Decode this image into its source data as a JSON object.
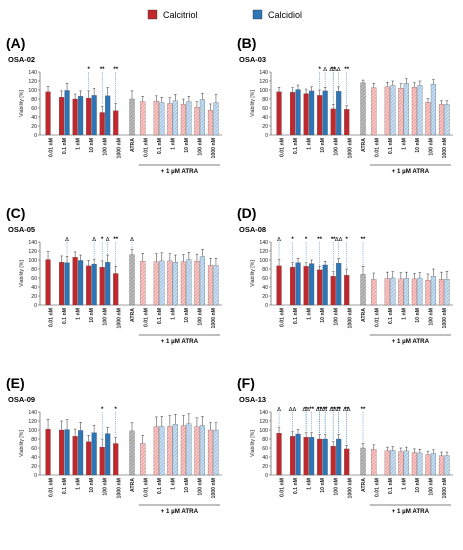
{
  "legend": [
    {
      "label": "Calcitriol",
      "color": "#c0282d"
    },
    {
      "label": "Calcidiol",
      "color": "#2e75b6"
    }
  ],
  "colors": {
    "calcitriol_dark": "#c0282d",
    "calcitriol_light": "#f3a8a6",
    "calcidiol_dark": "#2e75b6",
    "calcidiol_light": "#a9cbe8",
    "atra": "#8c8c8c",
    "error": "#333333",
    "marker": "#2e75b6"
  },
  "chart_data": [
    {
      "type": "bar",
      "panel_letter": "(A)",
      "cell_line": "OSA-02",
      "ylabel": "Viability [%]",
      "ylim": [
        0,
        140
      ],
      "yticks": [
        0,
        20,
        40,
        60,
        80,
        100,
        120,
        140
      ],
      "categories": [
        "0.01 nM",
        "0.1 nM",
        "1 nM",
        "10 nM",
        "100 nM",
        "1000 nM",
        "ATRA",
        "0.01 nM",
        "0.1 nM",
        "1 nM",
        "10 nM",
        "100 nM",
        "1000 nM"
      ],
      "group_label": "+ 1 µM ATRA",
      "series": [
        {
          "name": "Calcitriol",
          "values": [
            96,
            84,
            80,
            82,
            50,
            54,
            null,
            74,
            75,
            70,
            68,
            62,
            55
          ],
          "errors": [
            12,
            14,
            11,
            16,
            14,
            16,
            null,
            12,
            12,
            13,
            12,
            12,
            14
          ]
        },
        {
          "name": "Calcidiol",
          "values": [
            null,
            99,
            86,
            88,
            87,
            null,
            null,
            null,
            72,
            76,
            74,
            79,
            72
          ],
          "errors": [
            null,
            16,
            12,
            15,
            18,
            null,
            null,
            null,
            12,
            14,
            12,
            14,
            18
          ]
        },
        {
          "name": "ATRA",
          "values": [
            null,
            null,
            null,
            null,
            null,
            null,
            80,
            null,
            null,
            null,
            null,
            null,
            null
          ],
          "errors": [
            null,
            null,
            null,
            null,
            null,
            null,
            18,
            null,
            null,
            null,
            null,
            null,
            null
          ]
        }
      ],
      "annotations": [
        {
          "category": "10 nM",
          "series": "Calcitriol",
          "label": "*"
        },
        {
          "category": "100 nM",
          "series": "Calcitriol",
          "label": "**"
        },
        {
          "category": "1000 nM",
          "series": "Calcitriol",
          "label": "**"
        }
      ],
      "atra_markers": [
        {
          "category": "1000 nM",
          "series": "Calcidiol",
          "label": "Δ"
        }
      ]
    },
    {
      "type": "bar",
      "panel_letter": "(B)",
      "cell_line": "OSA-03",
      "ylabel": "Viability [%]",
      "ylim": [
        0,
        140
      ],
      "yticks": [
        0,
        20,
        40,
        60,
        80,
        100,
        120,
        140
      ],
      "categories": [
        "0.01 nM",
        "0.1 nM",
        "1 nM",
        "10 nM",
        "100 nM",
        "1000 nM",
        "ATRA",
        "0.01 nM",
        "0.1 nM",
        "1 nM",
        "10 nM",
        "100 nM",
        "1000 nM"
      ],
      "group_label": "+ 1 µM ATRA",
      "series": [
        {
          "name": "Calcitriol",
          "values": [
            96,
            95,
            92,
            88,
            58,
            57,
            null,
            105,
            107,
            104,
            106,
            73,
            68
          ],
          "errors": [
            10,
            10,
            10,
            12,
            10,
            8,
            null,
            10,
            10,
            10,
            10,
            8,
            8
          ]
        },
        {
          "name": "Calcidiol",
          "values": [
            null,
            101,
            98,
            98,
            97,
            null,
            null,
            null,
            110,
            115,
            110,
            113,
            68
          ],
          "errors": [
            null,
            10,
            9,
            8,
            10,
            null,
            null,
            null,
            10,
            10,
            10,
            10,
            8
          ]
        },
        {
          "name": "ATRA",
          "values": [
            null,
            null,
            null,
            null,
            null,
            null,
            116,
            null,
            null,
            null,
            null,
            null,
            null
          ],
          "errors": [
            null,
            null,
            null,
            null,
            null,
            null,
            6,
            null,
            null,
            null,
            null,
            null,
            null
          ]
        }
      ],
      "annotations": [
        {
          "category": "10 nM",
          "series": "Calcitriol",
          "label": "*"
        },
        {
          "category": "100 nM",
          "series": "Calcitriol",
          "label": "**"
        },
        {
          "category": "1000 nM",
          "series": "Calcitriol",
          "label": "**"
        }
      ],
      "atra_markers": [
        {
          "category": "10 nM",
          "series": "Calcidiol",
          "label": "Δ"
        },
        {
          "category": "100 nM",
          "series": "Calcitriol",
          "label": "ΔΔ"
        },
        {
          "category": "100 nM",
          "series": "Calcidiol",
          "label": "Δ"
        },
        {
          "category": "1000 nM",
          "series": "Calcidiol",
          "label": "ΔΔ"
        }
      ]
    },
    {
      "type": "bar",
      "panel_letter": "(C)",
      "cell_line": "OSA-05",
      "ylabel": "Viability [%]",
      "ylim": [
        0,
        140
      ],
      "yticks": [
        0,
        20,
        40,
        60,
        80,
        100,
        120,
        140
      ],
      "categories": [
        "0.01 nM",
        "0.1 nM",
        "1 nM",
        "10 nM",
        "100 nM",
        "1000 nM",
        "ATRA",
        "0.01 nM",
        "0.1 nM",
        "1 nM",
        "10 nM",
        "100 nM",
        "1000 nM"
      ],
      "group_label": "+ 1 µM ATRA",
      "series": [
        {
          "name": "Calcitriol",
          "values": [
            101,
            95,
            106,
            87,
            84,
            70,
            null,
            97,
            96,
            98,
            96,
            97,
            88
          ],
          "errors": [
            18,
            14,
            12,
            12,
            14,
            16,
            null,
            18,
            18,
            16,
            16,
            16,
            16
          ]
        },
        {
          "name": "Calcidiol",
          "values": [
            null,
            94,
            99,
            91,
            95,
            null,
            null,
            null,
            98,
            95,
            101,
            108,
            88
          ],
          "errors": [
            null,
            14,
            12,
            10,
            16,
            null,
            null,
            null,
            18,
            16,
            16,
            16,
            16
          ]
        },
        {
          "name": "ATRA",
          "values": [
            null,
            null,
            null,
            null,
            null,
            null,
            112,
            null,
            null,
            null,
            null,
            null,
            null
          ],
          "errors": [
            null,
            null,
            null,
            null,
            null,
            null,
            12,
            null,
            null,
            null,
            null,
            null,
            null
          ]
        }
      ],
      "annotations": [
        {
          "category": "100 nM",
          "series": "Calcitriol",
          "label": "*"
        },
        {
          "category": "1000 nM",
          "series": "Calcitriol",
          "label": "**"
        }
      ],
      "atra_markers": [
        {
          "category": "ATRA",
          "series": "ATRA",
          "label": "Δ"
        },
        {
          "category": "0.1 nM",
          "series": "Calcidiol",
          "label": "Δ"
        },
        {
          "category": "10 nM",
          "series": "Calcidiol",
          "label": "Δ"
        },
        {
          "category": "100 nM",
          "series": "Calcidiol",
          "label": "Δ"
        },
        {
          "category": "1000 nM",
          "series": "Calcidiol",
          "label": "Δ"
        }
      ]
    },
    {
      "type": "bar",
      "panel_letter": "(D)",
      "cell_line": "OSA-08",
      "ylabel": "Viability [%]",
      "ylim": [
        0,
        140
      ],
      "yticks": [
        0,
        20,
        40,
        60,
        80,
        100,
        120,
        140
      ],
      "categories": [
        "0.01 nM",
        "0.1 nM",
        "1 nM",
        "10 nM",
        "100 nM",
        "1000 nM",
        "ATRA",
        "0.01 nM",
        "0.1 nM",
        "1 nM",
        "10 nM",
        "100 nM",
        "1000 nM"
      ],
      "group_label": "+ 1 µM ATRA",
      "series": [
        {
          "name": "Calcitriol",
          "values": [
            87,
            84,
            86,
            78,
            64,
            66,
            null,
            57,
            59,
            58,
            58,
            55,
            57
          ],
          "errors": [
            14,
            10,
            8,
            8,
            10,
            14,
            null,
            14,
            14,
            14,
            12,
            14,
            16
          ]
        },
        {
          "name": "Calcidiol",
          "values": [
            null,
            94,
            92,
            89,
            93,
            null,
            null,
            null,
            60,
            59,
            60,
            64,
            57
          ],
          "errors": [
            null,
            10,
            8,
            8,
            10,
            null,
            null,
            null,
            14,
            14,
            12,
            16,
            18
          ]
        },
        {
          "name": "ATRA",
          "values": [
            null,
            null,
            null,
            null,
            null,
            null,
            68,
            null,
            null,
            null,
            null,
            null,
            null
          ],
          "errors": [
            null,
            null,
            null,
            null,
            null,
            null,
            18,
            null,
            null,
            null,
            null,
            null,
            null
          ]
        }
      ],
      "annotations": [
        {
          "category": "0.1 nM",
          "series": "Calcitriol",
          "label": "*"
        },
        {
          "category": "1 nM",
          "series": "Calcitriol",
          "label": "*"
        },
        {
          "category": "10 nM",
          "series": "Calcitriol",
          "label": "**"
        },
        {
          "category": "100 nM",
          "series": "Calcitriol",
          "label": "**"
        },
        {
          "category": "1000 nM",
          "series": "Calcitriol",
          "label": "*"
        },
        {
          "category": "ATRA",
          "series": "ATRA",
          "label": "**"
        }
      ],
      "atra_markers": [
        {
          "category": "0.01 nM",
          "series": "Calcitriol",
          "label": "Δ"
        },
        {
          "category": "100 nM",
          "series": "Calcidiol",
          "label": "ΔΔ"
        },
        {
          "category": "1000 nM",
          "series": "Calcidiol",
          "label": "Δ"
        }
      ]
    },
    {
      "type": "bar",
      "panel_letter": "(E)",
      "cell_line": "OSA-09",
      "ylabel": "Viability [%]",
      "ylim": [
        0,
        140
      ],
      "yticks": [
        0,
        20,
        40,
        60,
        80,
        100,
        120,
        140
      ],
      "categories": [
        "0.01 nM",
        "0.1 nM",
        "1 nM",
        "10 nM",
        "100 nM",
        "1000 nM",
        "ATRA",
        "0.01 nM",
        "0.1 nM",
        "1 nM",
        "10 nM",
        "100 nM",
        "1000 nM"
      ],
      "group_label": "+ 1 µM ATRA",
      "series": [
        {
          "name": "Calcitriol",
          "values": [
            102,
            100,
            86,
            74,
            62,
            70,
            null,
            70,
            107,
            108,
            110,
            107,
            100
          ],
          "errors": [
            22,
            20,
            16,
            14,
            18,
            14,
            null,
            18,
            22,
            24,
            22,
            20,
            16
          ]
        },
        {
          "name": "Calcidiol",
          "values": [
            null,
            101,
            99,
            94,
            92,
            null,
            null,
            null,
            108,
            113,
            114,
            110,
            100
          ],
          "errors": [
            null,
            22,
            18,
            16,
            14,
            null,
            null,
            null,
            22,
            22,
            22,
            20,
            16
          ]
        },
        {
          "name": "ATRA",
          "values": [
            null,
            null,
            null,
            null,
            null,
            null,
            98,
            null,
            null,
            null,
            null,
            null,
            null
          ],
          "errors": [
            null,
            null,
            null,
            null,
            null,
            null,
            18,
            null,
            null,
            null,
            null,
            null,
            null
          ]
        }
      ],
      "annotations": [
        {
          "category": "100 nM",
          "series": "Calcitriol",
          "label": "*"
        },
        {
          "category": "1000 nM",
          "series": "Calcitriol",
          "label": "*"
        }
      ],
      "atra_markers": []
    },
    {
      "type": "bar",
      "panel_letter": "(F)",
      "cell_line": "OSA-13",
      "ylabel": "Viability [%]",
      "ylim": [
        0,
        140
      ],
      "yticks": [
        0,
        20,
        40,
        60,
        80,
        100,
        120,
        140
      ],
      "categories": [
        "0.01 nM",
        "0.1 nM",
        "1 nM",
        "10 nM",
        "100 nM",
        "1000 nM",
        "ATRA",
        "0.01 nM",
        "0.1 nM",
        "1 nM",
        "10 nM",
        "100 nM",
        "1000 nM"
      ],
      "group_label": "+ 1 µM ATRA",
      "series": [
        {
          "name": "Calcitriol",
          "values": [
            93,
            86,
            84,
            80,
            64,
            58,
            null,
            57,
            54,
            52,
            50,
            45,
            43
          ],
          "errors": [
            12,
            10,
            10,
            10,
            10,
            8,
            null,
            10,
            8,
            8,
            8,
            8,
            8
          ]
        },
        {
          "name": "Calcidiol",
          "values": [
            null,
            91,
            84,
            80,
            80,
            null,
            null,
            null,
            55,
            54,
            49,
            48,
            43
          ],
          "errors": [
            null,
            10,
            10,
            10,
            10,
            null,
            null,
            null,
            8,
            8,
            8,
            8,
            8
          ]
        },
        {
          "name": "ATRA",
          "values": [
            null,
            null,
            null,
            null,
            null,
            null,
            60,
            null,
            null,
            null,
            null,
            null,
            null
          ],
          "errors": [
            null,
            null,
            null,
            null,
            null,
            null,
            10,
            null,
            null,
            null,
            null,
            null,
            null
          ]
        }
      ],
      "annotations": [
        {
          "category": "1 nM",
          "series": "Calcitriol",
          "label": "*"
        },
        {
          "category": "1 nM",
          "series": "Calcidiol",
          "label": "**"
        },
        {
          "category": "10 nM",
          "series": "Calcitriol",
          "label": "**"
        },
        {
          "category": "10 nM",
          "series": "Calcidiol",
          "label": "**"
        },
        {
          "category": "100 nM",
          "series": "Calcitriol",
          "label": "**"
        },
        {
          "category": "100 nM",
          "series": "Calcidiol",
          "label": "**"
        },
        {
          "category": "1000 nM",
          "series": "Calcitriol",
          "label": "**"
        },
        {
          "category": "ATRA",
          "series": "ATRA",
          "label": "**"
        }
      ],
      "atra_markers": [
        {
          "category": "0.01 nM",
          "series": "Calcitriol",
          "label": "Δ"
        },
        {
          "category": "0.1 nM",
          "series": "Calcitriol",
          "label": "ΔΔ"
        },
        {
          "category": "1 nM",
          "series": "Calcitriol",
          "label": "ΔΔ"
        },
        {
          "category": "10 nM",
          "series": "Calcitriol",
          "label": "ΔΔ"
        },
        {
          "category": "100 nM",
          "series": "Calcitriol",
          "label": "ΔΔ"
        },
        {
          "category": "1000 nM",
          "series": "Calcitriol",
          "label": "ΔΔ"
        },
        {
          "category": "10 nM",
          "series": "Calcidiol",
          "label": "Δ"
        },
        {
          "category": "100 nM",
          "series": "Calcidiol",
          "label": "Δ"
        },
        {
          "category": "1000 nM",
          "series": "Calcidiol",
          "label": "ΔΔ"
        }
      ]
    }
  ]
}
